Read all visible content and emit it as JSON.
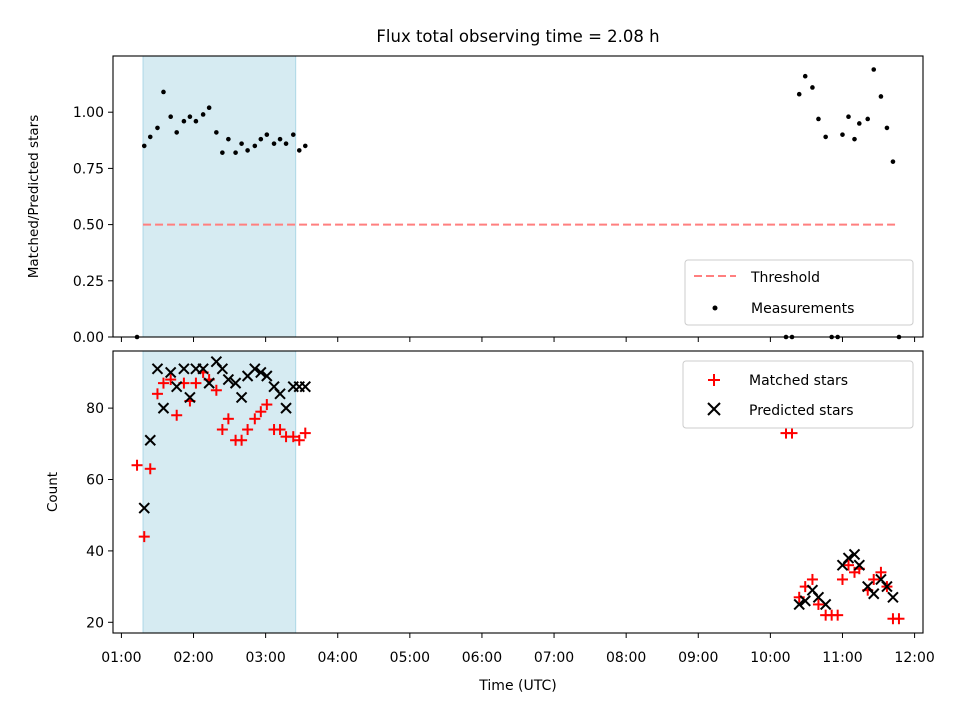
{
  "chart_data": {
    "title": "Flux total observing time = 2.08 h",
    "xlabel": "Time (UTC)",
    "xlim": [
      "00:53",
      "12:07"
    ],
    "x_ticks": [
      "01:00",
      "02:00",
      "03:00",
      "04:00",
      "05:00",
      "06:00",
      "07:00",
      "08:00",
      "09:00",
      "10:00",
      "11:00",
      "12:00"
    ],
    "shaded_interval": [
      "01:18",
      "03:25"
    ],
    "colors": {
      "threshold": "#ff7f7f",
      "shade": "#add8e6",
      "matched": "#ff0000",
      "predicted": "#000000",
      "measurements": "#000000"
    },
    "panels": [
      {
        "type": "scatter",
        "ylabel": "Matched/Predicted stars",
        "ylim": [
          0,
          1.25
        ],
        "y_ticks": [
          "0.00",
          "0.25",
          "0.50",
          "0.75",
          "1.00"
        ],
        "legend_position": "lower-right",
        "threshold": {
          "name": "Threshold",
          "value": 0.5,
          "x_range": [
            "01:18",
            "11:44"
          ]
        },
        "series": [
          {
            "name": "Measurements",
            "marker": "dot",
            "points": [
              [
                "01:13",
                0.0
              ],
              [
                "01:19",
                0.85
              ],
              [
                "01:24",
                0.89
              ],
              [
                "01:30",
                0.93
              ],
              [
                "01:35",
                1.09
              ],
              [
                "01:41",
                0.98
              ],
              [
                "01:46",
                0.91
              ],
              [
                "01:52",
                0.96
              ],
              [
                "01:57",
                0.98
              ],
              [
                "02:02",
                0.96
              ],
              [
                "02:08",
                0.99
              ],
              [
                "02:13",
                1.02
              ],
              [
                "02:19",
                0.91
              ],
              [
                "02:24",
                0.82
              ],
              [
                "02:29",
                0.88
              ],
              [
                "02:35",
                0.82
              ],
              [
                "02:40",
                0.86
              ],
              [
                "02:45",
                0.83
              ],
              [
                "02:51",
                0.85
              ],
              [
                "02:56",
                0.88
              ],
              [
                "03:01",
                0.9
              ],
              [
                "03:07",
                0.86
              ],
              [
                "03:12",
                0.88
              ],
              [
                "03:17",
                0.86
              ],
              [
                "03:23",
                0.9
              ],
              [
                "03:28",
                0.83
              ],
              [
                "03:33",
                0.85
              ],
              [
                "10:13",
                0.0
              ],
              [
                "10:18",
                0.0
              ],
              [
                "10:24",
                1.08
              ],
              [
                "10:29",
                1.16
              ],
              [
                "10:35",
                1.11
              ],
              [
                "10:40",
                0.97
              ],
              [
                "10:46",
                0.89
              ],
              [
                "10:51",
                0.0
              ],
              [
                "10:56",
                0.0
              ],
              [
                "11:00",
                0.9
              ],
              [
                "11:05",
                0.98
              ],
              [
                "11:10",
                0.88
              ],
              [
                "11:14",
                0.95
              ],
              [
                "11:21",
                0.97
              ],
              [
                "11:26",
                1.19
              ],
              [
                "11:32",
                1.07
              ],
              [
                "11:37",
                0.93
              ],
              [
                "11:42",
                0.78
              ],
              [
                "11:47",
                0.0
              ]
            ]
          }
        ]
      },
      {
        "type": "scatter",
        "ylabel": "Count",
        "ylim": [
          17,
          96
        ],
        "y_ticks": [
          "20",
          "40",
          "60",
          "80"
        ],
        "legend_position": "upper-right",
        "series": [
          {
            "name": "Matched stars",
            "marker": "plus",
            "points": [
              [
                "01:13",
                64
              ],
              [
                "01:19",
                44
              ],
              [
                "01:24",
                63
              ],
              [
                "01:30",
                84
              ],
              [
                "01:35",
                87
              ],
              [
                "01:41",
                88
              ],
              [
                "01:46",
                78
              ],
              [
                "01:52",
                87
              ],
              [
                "01:57",
                82
              ],
              [
                "02:02",
                87
              ],
              [
                "02:08",
                90
              ],
              [
                "02:13",
                88
              ],
              [
                "02:19",
                85
              ],
              [
                "02:24",
                74
              ],
              [
                "02:29",
                77
              ],
              [
                "02:35",
                71
              ],
              [
                "02:40",
                71
              ],
              [
                "02:45",
                74
              ],
              [
                "02:51",
                77
              ],
              [
                "02:56",
                79
              ],
              [
                "03:01",
                81
              ],
              [
                "03:07",
                74
              ],
              [
                "03:12",
                74
              ],
              [
                "03:17",
                72
              ],
              [
                "03:23",
                72
              ],
              [
                "03:28",
                71
              ],
              [
                "03:33",
                73
              ],
              [
                "10:13",
                73
              ],
              [
                "10:18",
                73
              ],
              [
                "10:24",
                27
              ],
              [
                "10:29",
                30
              ],
              [
                "10:35",
                32
              ],
              [
                "10:40",
                25
              ],
              [
                "10:46",
                22
              ],
              [
                "10:51",
                22
              ],
              [
                "10:56",
                22
              ],
              [
                "11:00",
                32
              ],
              [
                "11:05",
                36
              ],
              [
                "11:10",
                34
              ],
              [
                "11:14",
                35
              ],
              [
                "11:21",
                29
              ],
              [
                "11:26",
                32
              ],
              [
                "11:32",
                34
              ],
              [
                "11:37",
                30
              ],
              [
                "11:42",
                21
              ],
              [
                "11:47",
                21
              ]
            ]
          },
          {
            "name": "Predicted stars",
            "marker": "x",
            "points": [
              [
                "01:19",
                52
              ],
              [
                "01:24",
                71
              ],
              [
                "01:30",
                91
              ],
              [
                "01:35",
                80
              ],
              [
                "01:41",
                90
              ],
              [
                "01:46",
                86
              ],
              [
                "01:52",
                91
              ],
              [
                "01:57",
                83
              ],
              [
                "02:02",
                91
              ],
              [
                "02:08",
                91
              ],
              [
                "02:13",
                87
              ],
              [
                "02:19",
                93
              ],
              [
                "02:24",
                91
              ],
              [
                "02:29",
                88
              ],
              [
                "02:35",
                87
              ],
              [
                "02:40",
                83
              ],
              [
                "02:45",
                89
              ],
              [
                "02:51",
                91
              ],
              [
                "02:56",
                90
              ],
              [
                "03:01",
                89
              ],
              [
                "03:07",
                86
              ],
              [
                "03:12",
                84
              ],
              [
                "03:17",
                80
              ],
              [
                "03:23",
                86
              ],
              [
                "03:28",
                86
              ],
              [
                "03:33",
                86
              ],
              [
                "10:24",
                25
              ],
              [
                "10:29",
                26
              ],
              [
                "10:35",
                29
              ],
              [
                "10:40",
                27
              ],
              [
                "10:46",
                25
              ],
              [
                "11:00",
                36
              ],
              [
                "11:05",
                38
              ],
              [
                "11:10",
                39
              ],
              [
                "11:14",
                36
              ],
              [
                "11:21",
                30
              ],
              [
                "11:26",
                28
              ],
              [
                "11:32",
                32
              ],
              [
                "11:37",
                30
              ],
              [
                "11:42",
                27
              ]
            ]
          }
        ]
      }
    ]
  }
}
